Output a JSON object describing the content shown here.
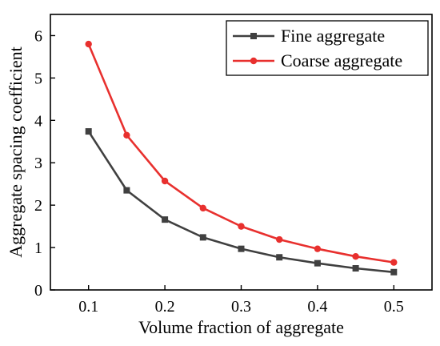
{
  "chart_data": {
    "type": "line",
    "xlabel": "Volume fraction of aggregate",
    "ylabel": "Aggregate spacing coefficient",
    "xlim": [
      0.05,
      0.55
    ],
    "ylim": [
      0,
      6.5
    ],
    "xticks": [
      "0.1",
      "0.2",
      "0.3",
      "0.4",
      "0.5"
    ],
    "yticks": [
      "0",
      "1",
      "2",
      "3",
      "4",
      "5",
      "6"
    ],
    "legend_position": "top-right",
    "grid": false,
    "x": [
      0.1,
      0.15,
      0.2,
      0.25,
      0.3,
      0.35,
      0.4,
      0.45,
      0.5
    ],
    "series": [
      {
        "name": "Fine aggregate",
        "color": "#404040",
        "marker": "square",
        "values": [
          3.74,
          2.35,
          1.66,
          1.24,
          0.97,
          0.77,
          0.63,
          0.51,
          0.42
        ]
      },
      {
        "name": "Coarse aggregate",
        "color": "#e8302e",
        "marker": "circle",
        "values": [
          5.8,
          3.65,
          2.57,
          1.93,
          1.5,
          1.19,
          0.97,
          0.79,
          0.65
        ]
      }
    ]
  }
}
